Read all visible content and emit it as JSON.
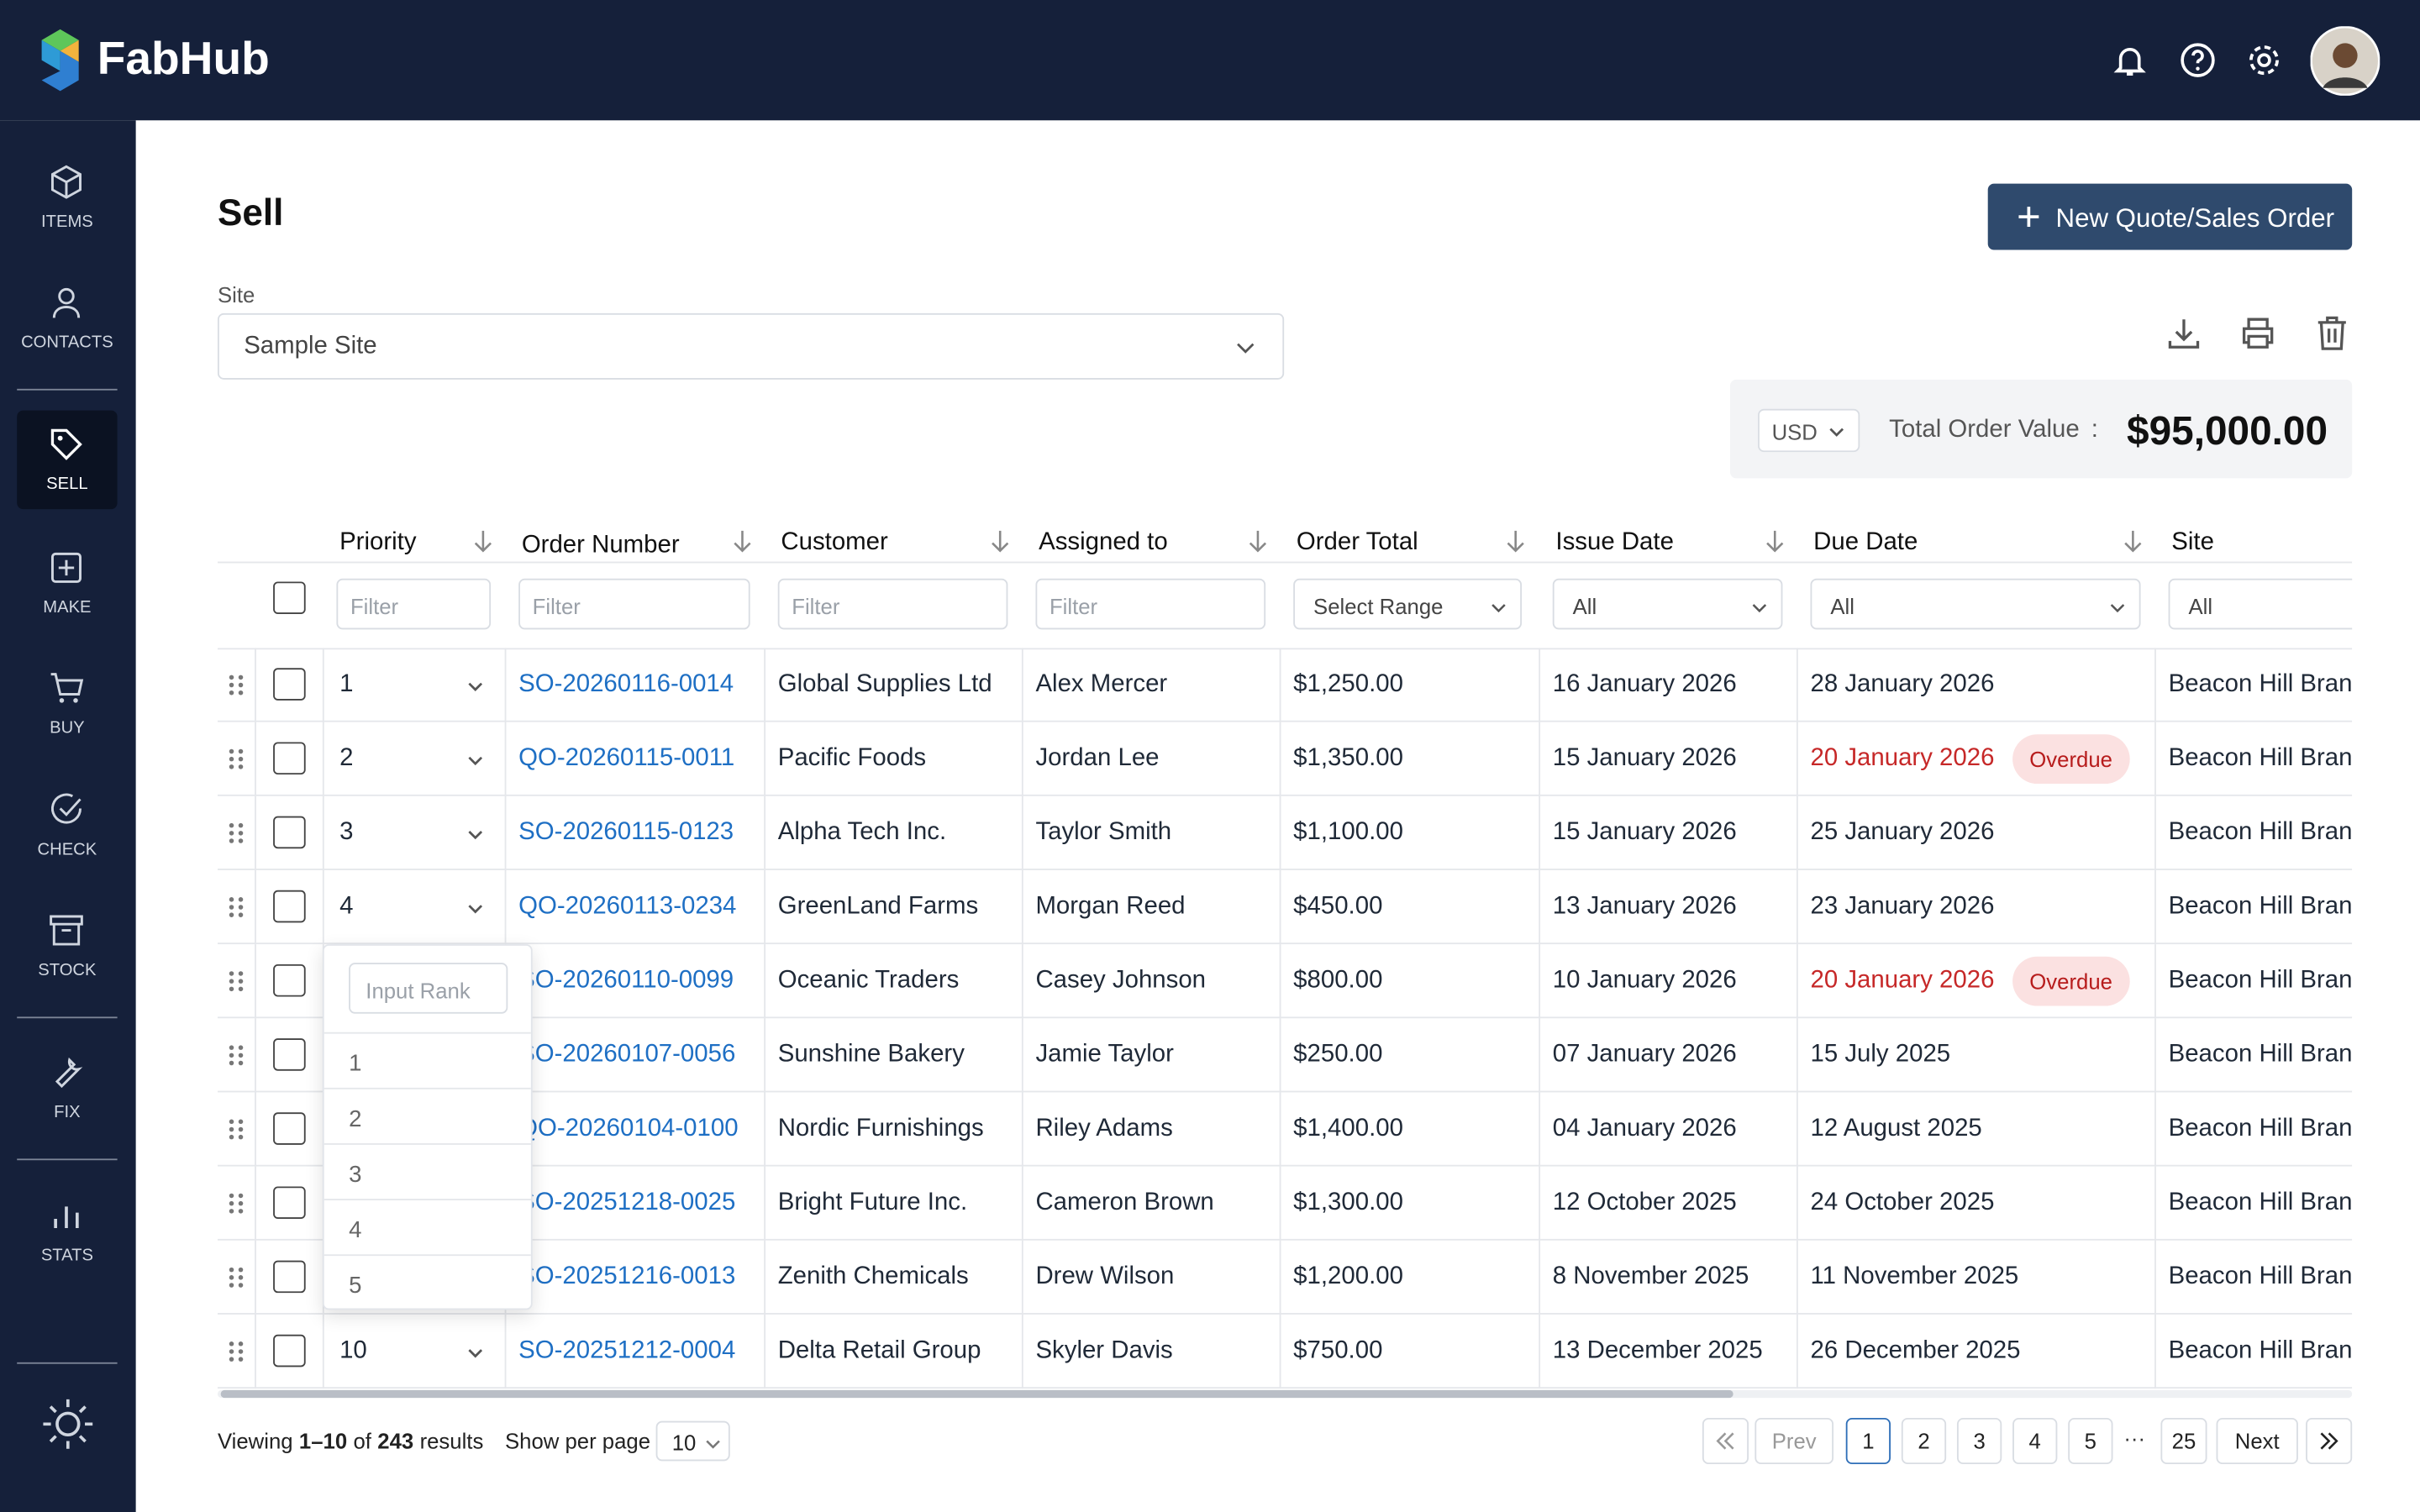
{
  "header": {
    "brand": "FabHub"
  },
  "sidebar": {
    "items": [
      "ITEMS",
      "CONTACTS",
      "SELL",
      "MAKE",
      "BUY",
      "CHECK",
      "STOCK",
      "FIX",
      "STATS"
    ],
    "active": "SELL"
  },
  "page": {
    "title": "Sell",
    "site_label": "Site",
    "site_value": "Sample Site",
    "new_button": "New Quote/Sales Order",
    "currency": "USD",
    "total_label": "Total Order Value",
    "total_colon": ":",
    "total_value": "$95,000.00"
  },
  "table": {
    "columns": [
      "Priority",
      "Order Number",
      "Customer",
      "Assigned to",
      "Order Total",
      "Issue Date",
      "Due Date",
      "Site"
    ],
    "filters": [
      "Filter",
      "Filter",
      "Filter",
      "Filter",
      "Select Range",
      "All",
      "All",
      "All"
    ],
    "rows": [
      {
        "cells": [
          "1",
          "SO-20260116-0014",
          "Global Supplies Ltd",
          "Alex Mercer",
          "$1,250.00",
          "16 January 2026",
          "28 January 2026",
          "Beacon Hill Branch"
        ]
      },
      {
        "cells": [
          "2",
          "QO-20260115-0011",
          "Pacific Foods",
          "Jordan Lee",
          "$1,350.00",
          "15 January 2026",
          "20 January 2026",
          "Beacon Hill Branch"
        ],
        "badge": "Overdue"
      },
      {
        "cells": [
          "3",
          "SO-20260115-0123",
          "Alpha Tech Inc.",
          "Taylor Smith",
          "$1,100.00",
          "15 January 2026",
          "25 January 2026",
          "Beacon Hill Branch"
        ]
      },
      {
        "cells": [
          "4",
          "QO-20260113-0234",
          "GreenLand Farms",
          "Morgan Reed",
          "$450.00",
          "13 January 2026",
          "23 January 2026",
          "Beacon Hill Branch"
        ]
      },
      {
        "cells": [
          null,
          "SO-20260110-0099",
          "Oceanic Traders",
          "Casey Johnson",
          "$800.00",
          "10 January 2026",
          "20 January 2026",
          "Beacon Hill Branch"
        ],
        "badge": "Overdue"
      },
      {
        "cells": [
          null,
          "SO-20260107-0056",
          "Sunshine Bakery",
          "Jamie Taylor",
          "$250.00",
          "07 January 2026",
          "15 July 2025",
          "Beacon Hill Branch"
        ]
      },
      {
        "cells": [
          null,
          "QO-20260104-0100",
          "Nordic Furnishings",
          "Riley Adams",
          "$1,400.00",
          "04 January 2026",
          "12 August 2025",
          "Beacon Hill Branch"
        ]
      },
      {
        "cells": [
          null,
          "SO-20251218-0025",
          "Bright Future Inc.",
          "Cameron Brown",
          "$1,300.00",
          "12 October 2025",
          "24 October 2025",
          "Beacon Hill Branch"
        ]
      },
      {
        "cells": [
          null,
          "SO-20251216-0013",
          "Zenith Chemicals",
          "Drew Wilson",
          "$1,200.00",
          "8 November 2025",
          "11 November 2025",
          "Beacon Hill Branch"
        ]
      },
      {
        "cells": [
          "10",
          "SO-20251212-0004",
          "Delta Retail Group",
          "Skyler Davis",
          "$750.00",
          "13 December 2025",
          "26 December 2025",
          "Beacon Hill Branch"
        ]
      }
    ]
  },
  "rank_dropdown": {
    "placeholder": "Input Rank",
    "options": [
      "1",
      "2",
      "3",
      "4",
      "5"
    ]
  },
  "footer": {
    "viewing": "Viewing",
    "range": "1–10",
    "of": "of",
    "total": "243",
    "results": "results",
    "per_page_label": "Show per page",
    "per_page": "10",
    "pagination": {
      "prev": "Prev",
      "pages": [
        "1",
        "2",
        "3",
        "4",
        "5"
      ],
      "ellipsis": "···",
      "last": "25",
      "next": "Next",
      "current": "1"
    }
  }
}
